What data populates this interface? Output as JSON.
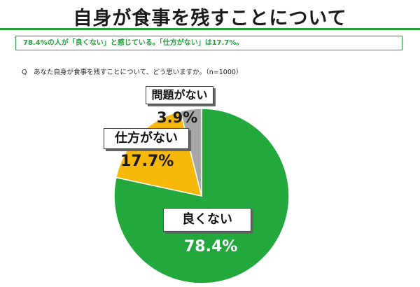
{
  "page": {
    "title": "自身が食事を残すことについて",
    "summary": "78.4%の人が「良くない」と感じている。「仕方がない」は17.7%。",
    "question": "Q　あなた自身が食事を残すことについて、どう思いますか。（n=1000）"
  },
  "chart_data": {
    "type": "pie",
    "title": "",
    "slices": [
      {
        "label": "良くない",
        "value": 78.4,
        "display": "78.4%",
        "color": "#22a83c"
      },
      {
        "label": "仕方がない",
        "value": 17.7,
        "display": "17.7%",
        "color": "#f6b90b"
      },
      {
        "label": "問題がない",
        "value": 3.9,
        "display": "3.9%",
        "color": "#a6a6a6"
      }
    ],
    "start": "12 o'clock",
    "direction": "clockwise",
    "legend": "none"
  }
}
